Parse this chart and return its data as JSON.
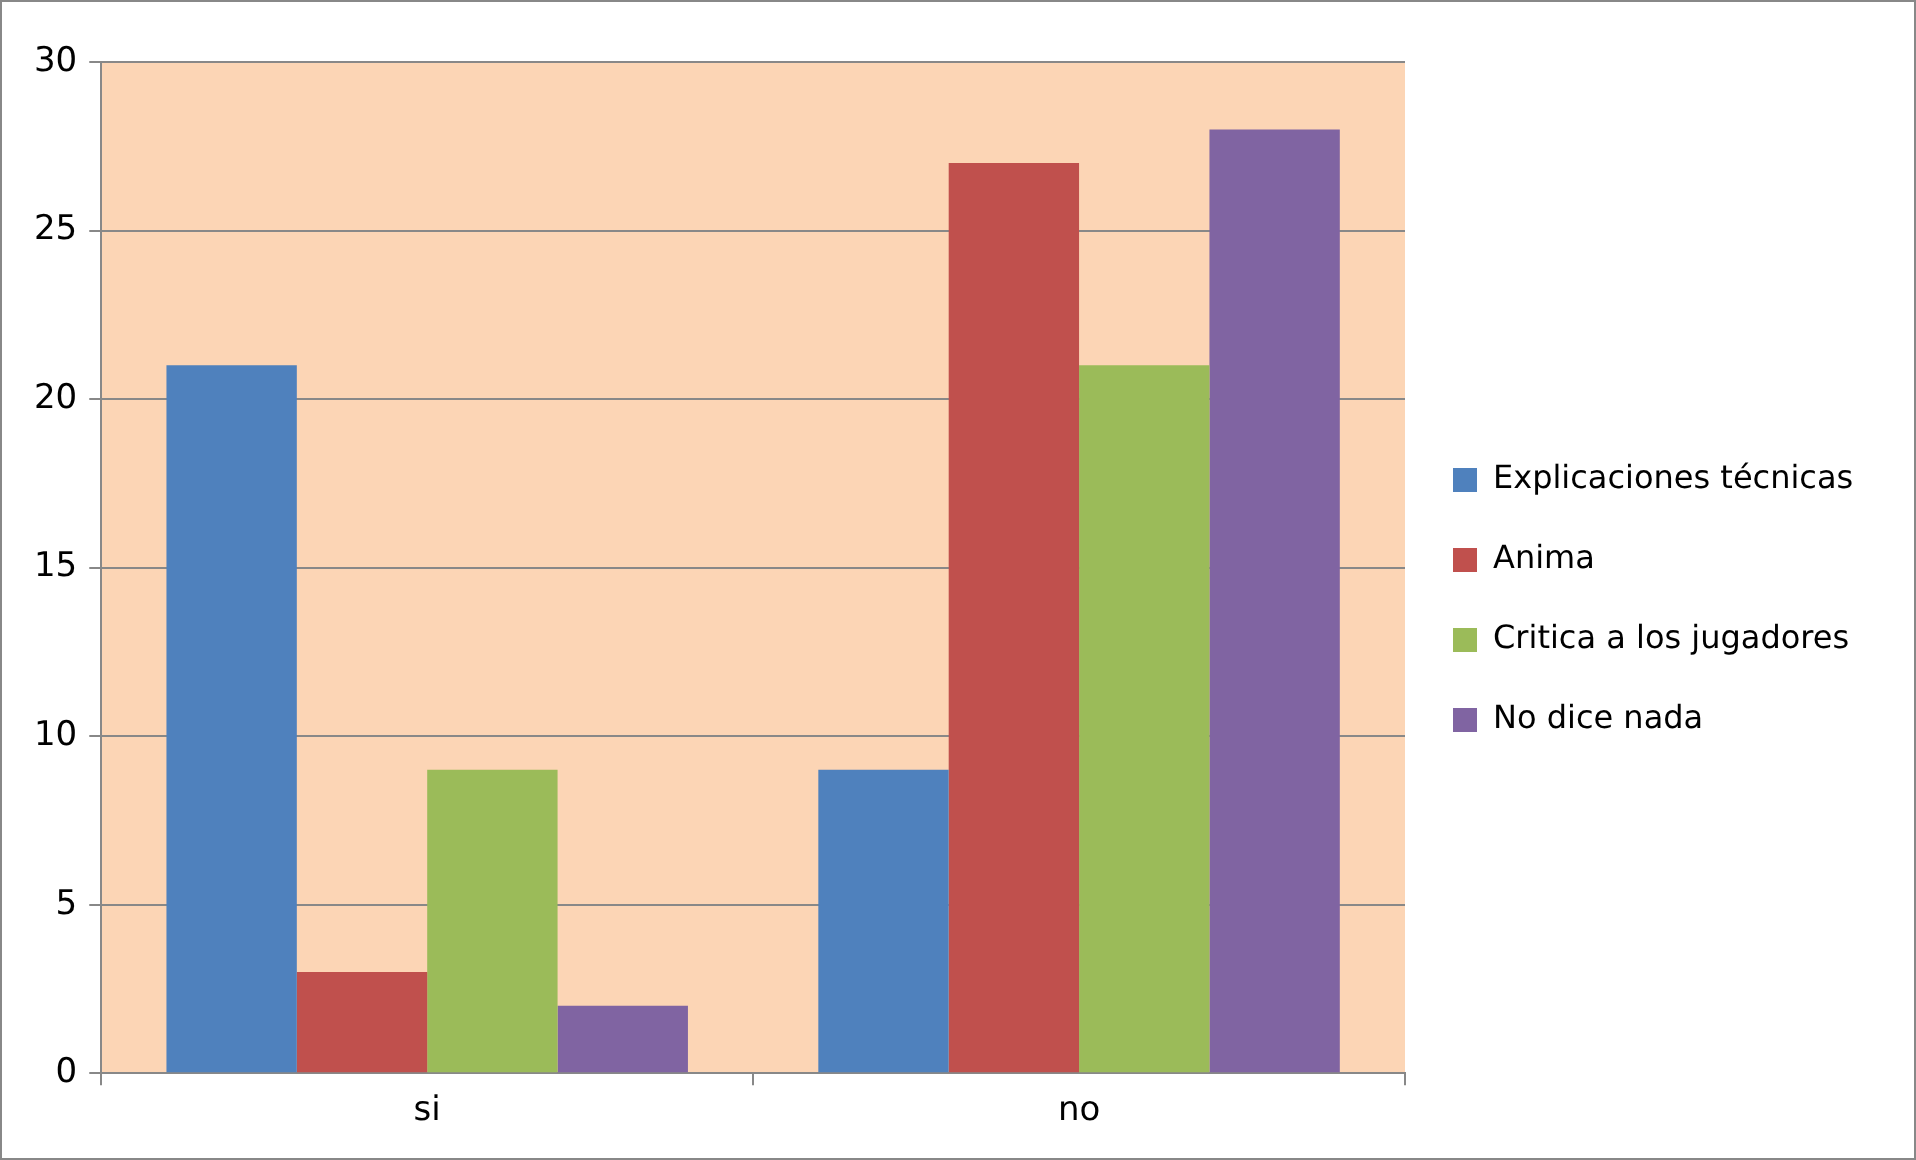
{
  "chart_data": {
    "type": "bar",
    "categories": [
      "si",
      "no"
    ],
    "series": [
      {
        "name": "Explicaciones técnicas",
        "color": "#4f81bd",
        "values": [
          21,
          9
        ]
      },
      {
        "name": "Anima",
        "color": "#c0504d",
        "values": [
          3,
          27
        ]
      },
      {
        "name": "Critica a los jugadores",
        "color": "#9bbb59",
        "values": [
          9,
          21
        ]
      },
      {
        "name": "No dice nada",
        "color": "#8064a2",
        "values": [
          2,
          28
        ]
      }
    ],
    "ylim": [
      0,
      30
    ],
    "yticks": [
      0,
      5,
      10,
      15,
      20,
      25,
      30
    ],
    "grid": "y",
    "legend": "right"
  }
}
